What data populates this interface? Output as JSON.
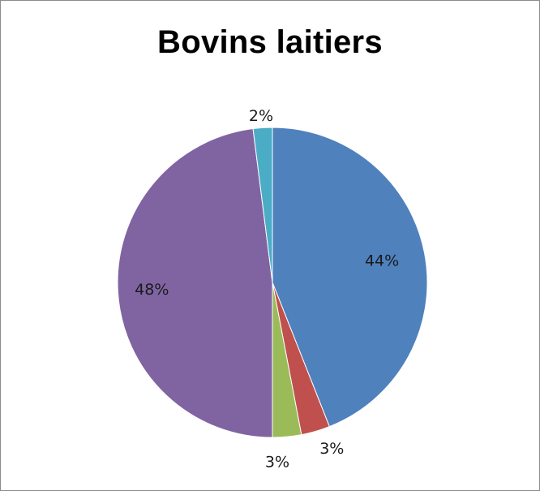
{
  "chart_data": {
    "type": "pie",
    "title": "Bovins laitiers",
    "slices": [
      {
        "value": 44,
        "label": "44%",
        "color": "#4F81BD"
      },
      {
        "value": 3,
        "label": "3%",
        "color": "#C0504D"
      },
      {
        "value": 3,
        "label": "3%",
        "color": "#9BBB59"
      },
      {
        "value": 48,
        "label": "48%",
        "color": "#8064A2"
      },
      {
        "value": 2,
        "label": "2%",
        "color": "#4BACC6"
      }
    ],
    "legend": "none"
  }
}
